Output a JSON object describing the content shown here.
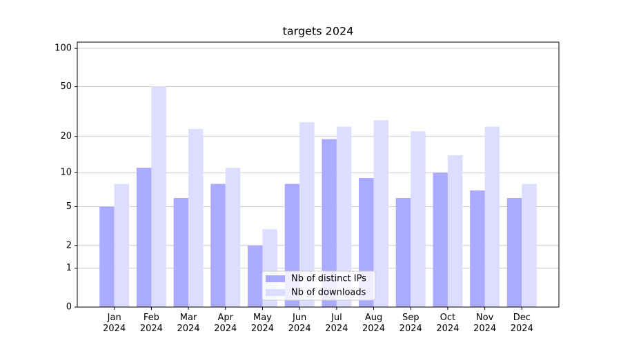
{
  "chart_data": {
    "type": "bar",
    "title": "targets 2024",
    "categories": [
      "Jan\n2024",
      "Feb\n2024",
      "Mar\n2024",
      "Apr\n2024",
      "May\n2024",
      "Jun\n2024",
      "Jul\n2024",
      "Aug\n2024",
      "Sep\n2024",
      "Oct\n2024",
      "Nov\n2024",
      "Dec\n2024"
    ],
    "series": [
      {
        "name": "Nb of distinct IPs",
        "color": "#aaaaff",
        "values": [
          5,
          11,
          6,
          8,
          2,
          8,
          19,
          9,
          6,
          10,
          7,
          6
        ]
      },
      {
        "name": "Nb of downloads",
        "color": "#ddddff",
        "values": [
          8,
          50,
          23,
          11,
          3,
          26,
          24,
          27,
          22,
          14,
          24,
          8
        ]
      }
    ],
    "yscale": "log1p",
    "ylim": [
      0,
      112
    ],
    "yticks": [
      0,
      1,
      2,
      5,
      10,
      20,
      50,
      100
    ],
    "grid": true,
    "legend": "lower center"
  }
}
